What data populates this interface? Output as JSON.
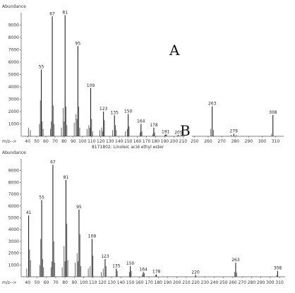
{
  "panel_labels": {
    "a": "A",
    "b": "B"
  },
  "chart_data": [
    {
      "id": "top",
      "type": "bar",
      "ylabel": "Abundance",
      "xlabel": "m/z-->",
      "caption": "8171802: Linoleic acid ethyl ester",
      "xlim": [
        33,
        212
      ],
      "ylim": [
        0,
        10000
      ],
      "xticks": [
        40,
        50,
        60,
        70,
        80,
        90,
        100,
        110,
        120,
        130,
        140,
        150,
        160,
        170,
        180,
        190,
        200,
        210
      ],
      "yticks": [
        1000,
        2000,
        3000,
        4000,
        5000,
        6000,
        7000,
        8000,
        9000
      ],
      "labeled_peaks": [
        {
          "x": 55,
          "y": 5400,
          "label": "55"
        },
        {
          "x": 67,
          "y": 9700,
          "label": "67"
        },
        {
          "x": 81,
          "y": 9800,
          "label": "81"
        },
        {
          "x": 95,
          "y": 7300,
          "label": "95"
        },
        {
          "x": 109,
          "y": 3900,
          "label": "109"
        },
        {
          "x": 123,
          "y": 2000,
          "label": "123"
        },
        {
          "x": 135,
          "y": 1700,
          "label": "135"
        },
        {
          "x": 150,
          "y": 1800,
          "label": "150"
        },
        {
          "x": 164,
          "y": 1000,
          "label": "164"
        },
        {
          "x": 178,
          "y": 700,
          "label": "178"
        },
        {
          "x": 191,
          "y": 150,
          "label": "191"
        },
        {
          "x": 205,
          "y": 100,
          "label": "205"
        }
      ],
      "minor_peaks": [
        [
          41,
          700
        ],
        [
          43,
          500
        ],
        [
          53,
          1000
        ],
        [
          54,
          2900
        ],
        [
          56,
          1200
        ],
        [
          57,
          600
        ],
        [
          65,
          600
        ],
        [
          66,
          1200
        ],
        [
          68,
          2500
        ],
        [
          69,
          1000
        ],
        [
          77,
          700
        ],
        [
          79,
          2300
        ],
        [
          80,
          1200
        ],
        [
          82,
          2400
        ],
        [
          83,
          900
        ],
        [
          91,
          1100
        ],
        [
          93,
          1800
        ],
        [
          94,
          1400
        ],
        [
          96,
          2400
        ],
        [
          97,
          700
        ],
        [
          105,
          600
        ],
        [
          107,
          900
        ],
        [
          108,
          700
        ],
        [
          110,
          1400
        ],
        [
          111,
          400
        ],
        [
          119,
          500
        ],
        [
          121,
          700
        ],
        [
          122,
          400
        ],
        [
          124,
          1300
        ],
        [
          133,
          500
        ],
        [
          136,
          900
        ],
        [
          137,
          500
        ],
        [
          147,
          400
        ],
        [
          149,
          600
        ],
        [
          151,
          800
        ],
        [
          163,
          300
        ],
        [
          165,
          400
        ],
        [
          177,
          200
        ],
        [
          179,
          300
        ],
        [
          190,
          100
        ],
        [
          192,
          150
        ],
        [
          204,
          80
        ]
      ]
    },
    {
      "id": "inset",
      "type": "bar",
      "xlim": [
        248,
        316
      ],
      "ylim": [
        0,
        3000
      ],
      "xticks": [
        250,
        260,
        270,
        280,
        290,
        300,
        310
      ],
      "labeled_peaks": [
        {
          "x": 263,
          "y": 2400,
          "label": "263"
        },
        {
          "x": 279,
          "y": 200,
          "label": "279"
        },
        {
          "x": 308,
          "y": 1700,
          "label": "308"
        }
      ],
      "minor_peaks": [
        [
          262,
          600
        ],
        [
          264,
          500
        ],
        [
          277,
          120
        ],
        [
          281,
          100
        ],
        [
          307,
          200
        ]
      ]
    },
    {
      "id": "bottom",
      "type": "bar",
      "ylabel": "Abundance",
      "xlabel": "m/z-->",
      "xlim": [
        33,
        316
      ],
      "ylim": [
        0,
        10000
      ],
      "xticks": [
        40,
        50,
        60,
        70,
        80,
        90,
        100,
        110,
        120,
        130,
        140,
        150,
        160,
        170,
        180,
        190,
        200,
        210,
        220,
        230,
        240,
        250,
        260,
        270,
        280,
        290,
        300,
        310
      ],
      "yticks": [
        1000,
        2000,
        3000,
        4000,
        5000,
        6000,
        7000,
        8000,
        9000
      ],
      "labeled_peaks": [
        {
          "x": 41,
          "y": 5200,
          "label": "41"
        },
        {
          "x": 55,
          "y": 6500,
          "label": "55"
        },
        {
          "x": 67,
          "y": 9500,
          "label": "67"
        },
        {
          "x": 81,
          "y": 8200,
          "label": "81"
        },
        {
          "x": 95,
          "y": 5700,
          "label": "95"
        },
        {
          "x": 109,
          "y": 3200,
          "label": "109"
        },
        {
          "x": 123,
          "y": 1500,
          "label": "123"
        },
        {
          "x": 135,
          "y": 700,
          "label": "135"
        },
        {
          "x": 150,
          "y": 900,
          "label": "150"
        },
        {
          "x": 164,
          "y": 400,
          "label": "164"
        },
        {
          "x": 178,
          "y": 200,
          "label": "178"
        },
        {
          "x": 220,
          "y": 150,
          "label": "220"
        },
        {
          "x": 263,
          "y": 1200,
          "label": "263"
        },
        {
          "x": 308,
          "y": 500,
          "label": "308"
        }
      ],
      "minor_peaks": [
        [
          39,
          700
        ],
        [
          42,
          2300
        ],
        [
          43,
          1400
        ],
        [
          53,
          1000
        ],
        [
          54,
          3200
        ],
        [
          56,
          1500
        ],
        [
          57,
          800
        ],
        [
          65,
          800
        ],
        [
          66,
          1300
        ],
        [
          68,
          3000
        ],
        [
          69,
          1200
        ],
        [
          77,
          800
        ],
        [
          79,
          2600
        ],
        [
          80,
          1300
        ],
        [
          82,
          4500
        ],
        [
          83,
          1400
        ],
        [
          91,
          1200
        ],
        [
          93,
          2000
        ],
        [
          94,
          1300
        ],
        [
          96,
          3600
        ],
        [
          97,
          900
        ],
        [
          105,
          700
        ],
        [
          107,
          900
        ],
        [
          110,
          1800
        ],
        [
          119,
          400
        ],
        [
          121,
          700
        ],
        [
          124,
          900
        ],
        [
          136,
          500
        ],
        [
          149,
          400
        ],
        [
          151,
          500
        ],
        [
          163,
          200
        ],
        [
          165,
          300
        ],
        [
          177,
          150
        ],
        [
          262,
          400
        ],
        [
          264,
          350
        ],
        [
          307,
          150
        ]
      ]
    }
  ]
}
